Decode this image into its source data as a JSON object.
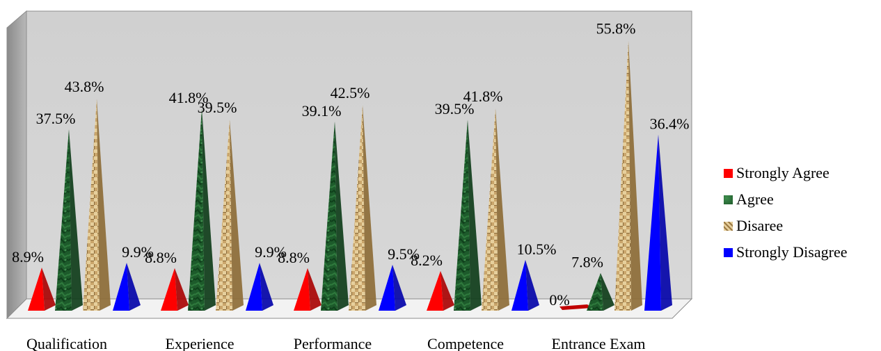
{
  "chart_data": {
    "type": "bar",
    "categories": [
      "Qualification",
      "Experience",
      "Performance",
      "Competence",
      "Entrance Exam"
    ],
    "series": [
      {
        "name": "Strongly Agree",
        "values": [
          8.9,
          8.8,
          8.8,
          8.2,
          0
        ],
        "color": "#ff0000"
      },
      {
        "name": "Agree",
        "values": [
          37.5,
          41.8,
          39.1,
          39.5,
          7.8
        ],
        "color": "#1e5a2a"
      },
      {
        "name": "Disaree",
        "values": [
          43.8,
          39.5,
          42.5,
          41.8,
          55.8
        ],
        "color": "#c8a46a"
      },
      {
        "name": "Strongly Disagree",
        "values": [
          9.9,
          9.9,
          9.5,
          10.5,
          36.4
        ],
        "color": "#0000ff"
      }
    ],
    "data_labels": [
      [
        "8.9%",
        "8.8%",
        "8.8%",
        "8.2%",
        "0%"
      ],
      [
        "37.5%",
        "41.8%",
        "39.1%",
        "39.5%",
        "7.8%"
      ],
      [
        "43.8%",
        "39.5%",
        "42.5%",
        "41.8%",
        "55.8%"
      ],
      [
        "9.9%",
        "9.9%",
        "9.5%",
        "10.5%",
        "36.4%"
      ]
    ],
    "shape": "pyramid",
    "ylim": [
      0,
      60
    ],
    "grid": false,
    "legend_position": "right",
    "title": "",
    "xlabel": "",
    "ylabel": ""
  }
}
